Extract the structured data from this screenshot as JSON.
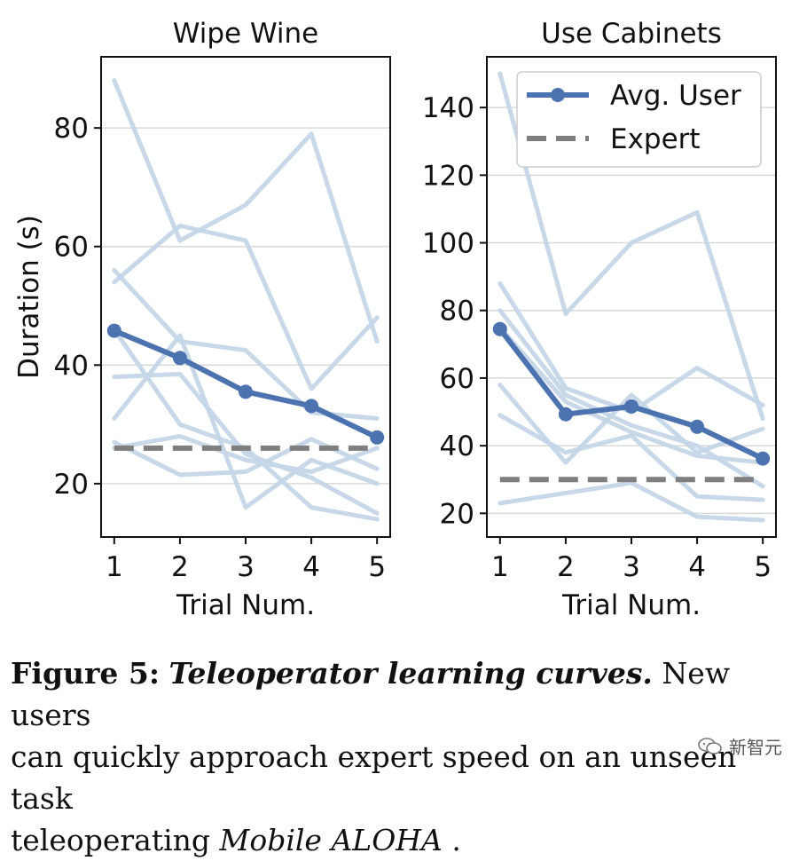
{
  "chart_data": [
    {
      "type": "line",
      "title": "Wipe Wine",
      "xlabel": "Trial Num.",
      "ylabel": "Duration (s)",
      "x": [
        1,
        2,
        3,
        4,
        5
      ],
      "xlim": [
        0.8,
        5.2
      ],
      "ylim": [
        11,
        92
      ],
      "yticks": [
        20,
        40,
        60,
        80
      ],
      "grid": true,
      "series": [
        {
          "name": "user-1",
          "role": "user",
          "values": [
            88,
            61,
            67,
            79,
            44
          ]
        },
        {
          "name": "user-2",
          "role": "user",
          "values": [
            54,
            63.5,
            61,
            36,
            48
          ]
        },
        {
          "name": "user-3",
          "role": "user",
          "values": [
            56,
            44,
            42.5,
            32,
            31
          ]
        },
        {
          "name": "user-4",
          "role": "user",
          "values": [
            46,
            30,
            26,
            16,
            14
          ]
        },
        {
          "name": "user-5",
          "role": "user",
          "values": [
            38,
            38.5,
            25,
            21,
            15
          ]
        },
        {
          "name": "user-6",
          "role": "user",
          "values": [
            31,
            45,
            16,
            24,
            20
          ]
        },
        {
          "name": "user-7",
          "role": "user",
          "values": [
            27,
            21.5,
            22,
            27.5,
            22.5
          ]
        },
        {
          "name": "user-8",
          "role": "user",
          "values": [
            26,
            28,
            24,
            22,
            26
          ]
        },
        {
          "name": "Avg. User",
          "role": "avg",
          "values": [
            45.8,
            41.2,
            35.5,
            33.1,
            27.8
          ]
        },
        {
          "name": "Expert",
          "role": "expert",
          "values": [
            26,
            26,
            26,
            26,
            26
          ]
        }
      ]
    },
    {
      "type": "line",
      "title": "Use Cabinets",
      "xlabel": "Trial Num.",
      "ylabel": "",
      "x": [
        1,
        2,
        3,
        4,
        5
      ],
      "xlim": [
        0.8,
        5.2
      ],
      "ylim": [
        13,
        155
      ],
      "yticks": [
        20,
        40,
        60,
        80,
        100,
        120,
        140
      ],
      "grid": true,
      "legend": {
        "position": "top-right",
        "entries": [
          "Avg. User",
          "Expert"
        ]
      },
      "series": [
        {
          "name": "user-1",
          "role": "user",
          "values": [
            150,
            79,
            100,
            109,
            48
          ]
        },
        {
          "name": "user-2",
          "role": "user",
          "values": [
            88,
            57,
            50,
            63,
            52
          ]
        },
        {
          "name": "user-3",
          "role": "user",
          "values": [
            80,
            55,
            46,
            40,
            28
          ]
        },
        {
          "name": "user-4",
          "role": "user",
          "values": [
            75,
            53,
            44,
            37,
            35
          ]
        },
        {
          "name": "user-5",
          "role": "user",
          "values": [
            58,
            35,
            55,
            38,
            45
          ]
        },
        {
          "name": "user-6",
          "role": "user",
          "values": [
            49,
            38,
            43,
            25,
            24
          ]
        },
        {
          "name": "user-7",
          "role": "user",
          "values": [
            23,
            26,
            29,
            19,
            18
          ]
        },
        {
          "name": "Avg. User",
          "role": "avg",
          "values": [
            74.5,
            49.3,
            51.6,
            45.6,
            36.2
          ]
        },
        {
          "name": "Expert",
          "role": "expert",
          "values": [
            30,
            30,
            30,
            30,
            30
          ]
        }
      ]
    }
  ],
  "colors": {
    "avg": "#4c72b0",
    "user": "#c5d6e8",
    "expert": "#7f7f7f",
    "grid": "#d9d9d9",
    "axis": "#111111"
  },
  "caption": {
    "fig_num": "Figure 5:",
    "fig_title": "Teleoperator learning curves.",
    "line1_rest": "New users",
    "line2": "can quickly approach expert speed on an unseen task",
    "line3_pre": "teleoperating",
    "line3_italic": "Mobile ALOHA",
    "line3_post": "."
  },
  "watermark": {
    "icon": "wechat-icon",
    "text": "新智元"
  }
}
